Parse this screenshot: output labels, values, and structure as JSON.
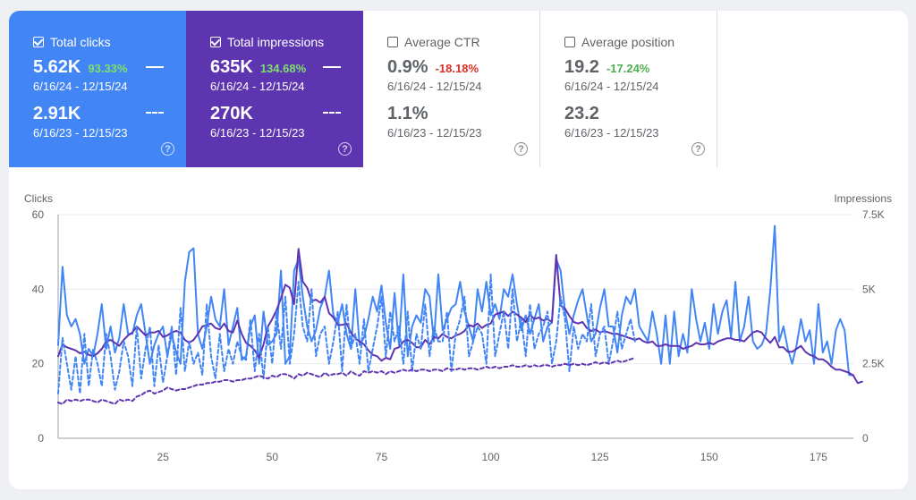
{
  "metrics": {
    "clicks": {
      "label": "Total clicks",
      "checked": true,
      "current_value": "5.62K",
      "change": "93.33%",
      "current_range": "6/16/24 - 12/15/24",
      "previous_value": "2.91K",
      "previous_range": "6/16/23 - 12/15/23",
      "help_icon": "?"
    },
    "impressions": {
      "label": "Total impressions",
      "checked": true,
      "current_value": "635K",
      "change": "134.68%",
      "current_range": "6/16/24 - 12/15/24",
      "previous_value": "270K",
      "previous_range": "6/16/23 - 12/15/23",
      "help_icon": "?"
    },
    "ctr": {
      "label": "Average CTR",
      "checked": false,
      "current_value": "0.9%",
      "change": "-18.18%",
      "current_range": "6/16/24 - 12/15/24",
      "previous_value": "1.1%",
      "previous_range": "6/16/23 - 12/15/23",
      "help_icon": "?"
    },
    "position": {
      "label": "Average position",
      "checked": false,
      "current_value": "19.2",
      "change": "-17.24%",
      "current_range": "6/16/24 - 12/15/24",
      "previous_value": "23.2",
      "previous_range": "6/16/23 - 12/15/23",
      "help_icon": "?"
    }
  },
  "colors": {
    "clicks": "#4285f4",
    "impressions": "#5e35b1",
    "change_up": "#7ee06a",
    "change_down": "#d93025"
  },
  "chart_data": {
    "type": "line",
    "left_axis_label": "Clicks",
    "right_axis_label": "Impressions",
    "y_left_ticks": [
      "0",
      "20",
      "40",
      "60"
    ],
    "y_right_ticks": [
      "0",
      "2.5K",
      "5K",
      "7.5K"
    ],
    "x_ticks": [
      "25",
      "50",
      "75",
      "100",
      "125",
      "150",
      "175"
    ],
    "x_range": [
      1,
      183
    ],
    "y_left_range": [
      0,
      60
    ],
    "y_right_range": [
      0,
      7500
    ],
    "series": [
      {
        "name": "clicks_current",
        "style": "solid",
        "axis": "left",
        "values": [
          25,
          46,
          33,
          30,
          32,
          28,
          20,
          24,
          22,
          28,
          36,
          24,
          30,
          23,
          27,
          36,
          28,
          28,
          33,
          36,
          28,
          20,
          25,
          28,
          30,
          22,
          28,
          23,
          20,
          42,
          50,
          51,
          28,
          24,
          30,
          38,
          32,
          30,
          40,
          25,
          30,
          35,
          21,
          22,
          30,
          33,
          20,
          34,
          25,
          26,
          28,
          45,
          20,
          22,
          45,
          48,
          38,
          30,
          26,
          29,
          35,
          38,
          45,
          33,
          31,
          36,
          28,
          24,
          40,
          25,
          27,
          32,
          38,
          34,
          41,
          31,
          24,
          39,
          25,
          44,
          22,
          30,
          33,
          31,
          40,
          38,
          26,
          44,
          29,
          32,
          35,
          36,
          42,
          34,
          30,
          26,
          40,
          34,
          42,
          33,
          36,
          32,
          40,
          38,
          44,
          36,
          29,
          33,
          28,
          32,
          36,
          26,
          30,
          31,
          48,
          45,
          34,
          28,
          33,
          37,
          40,
          33,
          26,
          28,
          35,
          40,
          30,
          30,
          23,
          33,
          38,
          36,
          40,
          30,
          28,
          26,
          34,
          28,
          20,
          33,
          20,
          34,
          22,
          28,
          23,
          40,
          32,
          26,
          31,
          24,
          36,
          28,
          34,
          37,
          27,
          42,
          26,
          30,
          38,
          26,
          24,
          25,
          28,
          40,
          57,
          26,
          30,
          24,
          20,
          25,
          32,
          26,
          29,
          20,
          36,
          23,
          26,
          20,
          29,
          32,
          29,
          17,
          17
        ]
      },
      {
        "name": "impressions_current",
        "style": "solid",
        "axis": "right",
        "values": [
          2750,
          3150,
          3050,
          3000,
          2950,
          2850,
          2900,
          2800,
          2750,
          2850,
          3000,
          3250,
          3300,
          3200,
          3100,
          3300,
          3450,
          3550,
          3750,
          3600,
          3450,
          3550,
          3550,
          3600,
          3400,
          3450,
          3550,
          3600,
          3550,
          3300,
          3200,
          3300,
          3500,
          3750,
          3800,
          3850,
          3700,
          3650,
          3850,
          3600,
          3550,
          3950,
          3500,
          3200,
          3100,
          2950,
          2700,
          3150,
          3750,
          4000,
          4300,
          4700,
          5150,
          5050,
          4500,
          6350,
          5250,
          5050,
          4600,
          4650,
          4550,
          4750,
          4200,
          4050,
          3800,
          3800,
          3850,
          3550,
          3350,
          3250,
          3150,
          2950,
          2800,
          2750,
          2600,
          2700,
          2650,
          3000,
          3050,
          3250,
          3300,
          3200,
          3050,
          3050,
          3300,
          3150,
          3400,
          3350,
          3500,
          3400,
          3350,
          3450,
          3500,
          3600,
          3800,
          3750,
          3850,
          3700,
          3800,
          3850,
          4150,
          4200,
          4250,
          4100,
          4250,
          4150,
          4050,
          3900,
          4150,
          4000,
          4050,
          3950,
          4000,
          3900,
          6150,
          4450,
          4350,
          4100,
          3900,
          3850,
          3900,
          3700,
          3600,
          3650,
          3550,
          3600,
          3550,
          3500,
          3500,
          3450,
          3400,
          3350,
          3300,
          3350,
          3250,
          3200,
          3250,
          3100,
          3100,
          3150,
          3100,
          3100,
          3100,
          3000,
          3050,
          3100,
          3200,
          3150,
          3150,
          3200,
          3150,
          3250,
          3300,
          3350,
          3350,
          3300,
          3300,
          3250,
          3400,
          3550,
          3600,
          3550,
          3350,
          3200,
          3400,
          3050,
          3050,
          2900,
          2900,
          3000,
          3100,
          2900,
          2800,
          2750,
          2650,
          2650,
          2550,
          2400,
          2300,
          2300,
          2250,
          2200,
          2100,
          1850,
          1900
        ]
      },
      {
        "name": "clicks_previous",
        "style": "dashed",
        "axis": "left",
        "values": [
          12,
          27,
          20,
          13,
          22,
          12,
          28,
          14,
          24,
          20,
          14,
          28,
          22,
          13,
          18,
          26,
          22,
          14,
          30,
          16,
          24,
          30,
          14,
          25,
          15,
          22,
          30,
          17,
          35,
          18,
          26,
          20,
          23,
          17,
          36,
          22,
          16,
          28,
          18,
          24,
          20,
          26,
          22,
          21,
          32,
          18,
          28,
          16,
          30,
          20,
          34,
          24,
          38,
          20,
          28,
          42,
          30,
          26,
          40,
          22,
          28,
          30,
          20,
          26,
          34,
          18,
          36,
          24,
          28,
          20,
          32,
          18,
          24,
          30,
          38,
          22,
          34,
          26,
          30,
          20,
          34,
          18,
          28,
          24,
          36,
          22,
          30,
          26,
          26,
          34,
          18,
          28,
          32,
          38,
          22,
          26,
          30,
          28,
          20,
          44,
          22,
          28,
          34,
          24,
          40,
          26,
          32,
          22,
          36,
          24,
          28,
          30,
          34,
          20,
          26,
          38,
          32,
          18,
          30,
          24,
          28,
          26,
          36,
          22,
          28,
          30,
          20,
          26,
          34,
          24,
          28,
          32,
          26
        ]
      },
      {
        "name": "impressions_previous",
        "style": "dashed",
        "axis": "right",
        "values": [
          1200,
          1150,
          1300,
          1250,
          1300,
          1250,
          1300,
          1300,
          1250,
          1200,
          1300,
          1250,
          1200,
          1150,
          1300,
          1250,
          1300,
          1250,
          1400,
          1450,
          1550,
          1600,
          1500,
          1550,
          1600,
          1700,
          1650,
          1600,
          1650,
          1650,
          1700,
          1750,
          1800,
          1800,
          1850,
          1850,
          1900,
          1900,
          1950,
          1950,
          1900,
          1950,
          1950,
          2000,
          2000,
          2050,
          2100,
          2050,
          2000,
          2100,
          2050,
          2150,
          2150,
          2100,
          2000,
          2150,
          2100,
          2200,
          2150,
          2100,
          2050,
          2200,
          2100,
          2150,
          2150,
          2200,
          2100,
          2250,
          2150,
          2100,
          2250,
          2200,
          2250,
          2200,
          2250,
          2150,
          2250,
          2200,
          2250,
          2300,
          2250,
          2300,
          2250,
          2300,
          2300,
          2250,
          2300,
          2300,
          2250,
          2350,
          2300,
          2300,
          2350,
          2300,
          2350,
          2350,
          2300,
          2350,
          2400,
          2350,
          2400,
          2350,
          2400,
          2400,
          2450,
          2400,
          2400,
          2450,
          2400,
          2450,
          2400,
          2450,
          2450,
          2400,
          2450,
          2450,
          2500,
          2450,
          2500,
          2450,
          2500,
          2450,
          2500,
          2550,
          2500,
          2550,
          2500,
          2550,
          2600,
          2550,
          2600,
          2650,
          2700
        ]
      }
    ]
  }
}
